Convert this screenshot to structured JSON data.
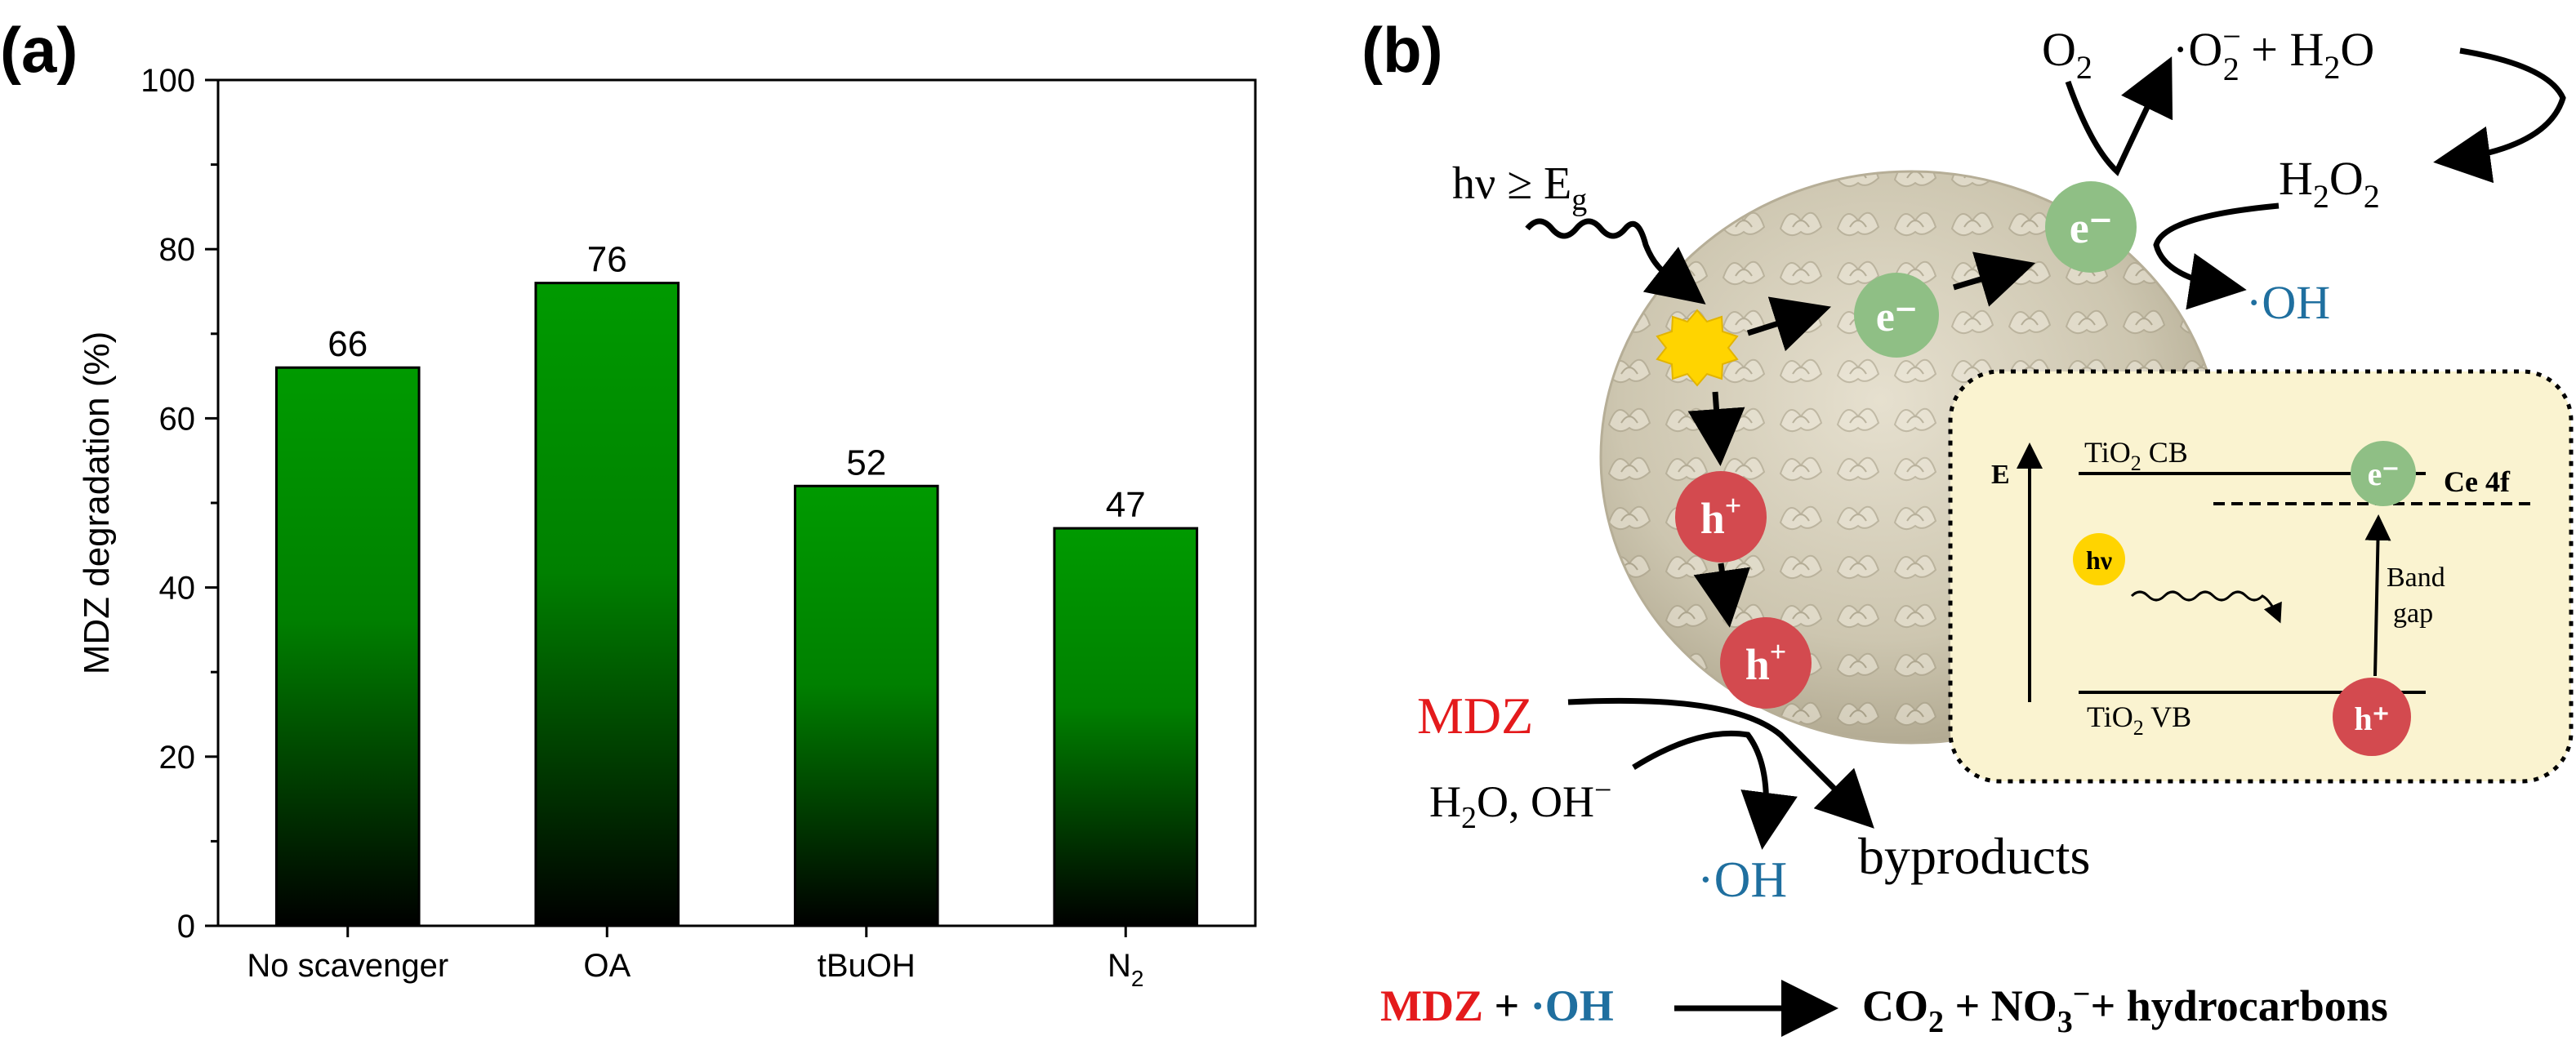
{
  "panel_a": {
    "label": "(a)"
  },
  "panel_b": {
    "label": "(b)",
    "light_label": {
      "main": "hν ≥ E",
      "sub": "g"
    },
    "electron": "e⁻",
    "hole_base": "h",
    "hole_sup": "+",
    "o2": {
      "main": "O",
      "sub": "2"
    },
    "superoxide": {
      "dot": "·O",
      "sup": "−",
      "sub": "2",
      "rest": " + H",
      "sub2": "2",
      "tail": "O"
    },
    "h2o2": {
      "a": "H",
      "s1": "2",
      "b": "O",
      "s2": "2"
    },
    "oh_top": "·OH",
    "oh_bottom": "·OH",
    "mdz": "MDZ",
    "water": {
      "a": "H",
      "s": "2",
      "b": "O, OH",
      "sup": "−"
    },
    "byproducts": "byproducts",
    "inset": {
      "energy_axis": "E",
      "cb": {
        "a": "TiO",
        "s": "2",
        "b": " CB"
      },
      "vb": {
        "a": "TiO",
        "s": "2",
        "b": " VB"
      },
      "ce4f": "Ce 4f",
      "hv": "hν",
      "band_gap_1": "Band",
      "band_gap_2": "gap",
      "electron": "e⁻",
      "hole": "h⁺"
    },
    "reaction": {
      "mdz": "MDZ",
      "plus": " + ",
      "oh": "·OH",
      "p1": "CO",
      "s1": "2",
      "p2": " + NO",
      "s2": "3",
      "sup2": "−",
      "p3": "+ hydrocarbons"
    },
    "colors": {
      "electron": "#8fbf85",
      "hole": "#d34a4f",
      "sun": "#ffd400",
      "oh": "#1f6f9f",
      "mdz": "#e41a1c",
      "inset_bg": "#faf3d0"
    }
  },
  "chart_data": {
    "type": "bar",
    "categories": [
      "No scavenger",
      "OA",
      "tBuOH",
      "N2"
    ],
    "category_display": [
      {
        "main": "No scavenger",
        "sub": ""
      },
      {
        "main": "OA",
        "sub": ""
      },
      {
        "main": "tBuOH",
        "sub": ""
      },
      {
        "main": "N",
        "sub": "2"
      }
    ],
    "values": [
      66,
      76,
      52,
      47
    ],
    "data_labels": [
      "66",
      "76",
      "52",
      "47"
    ],
    "title": "",
    "xlabel": "",
    "ylabel": "MDZ degradation (%)",
    "ylim": [
      0,
      100
    ],
    "yticks": [
      0,
      20,
      40,
      60,
      80,
      100
    ],
    "grid": false,
    "bar_gradient": [
      "#009a00",
      "#000000"
    ]
  }
}
